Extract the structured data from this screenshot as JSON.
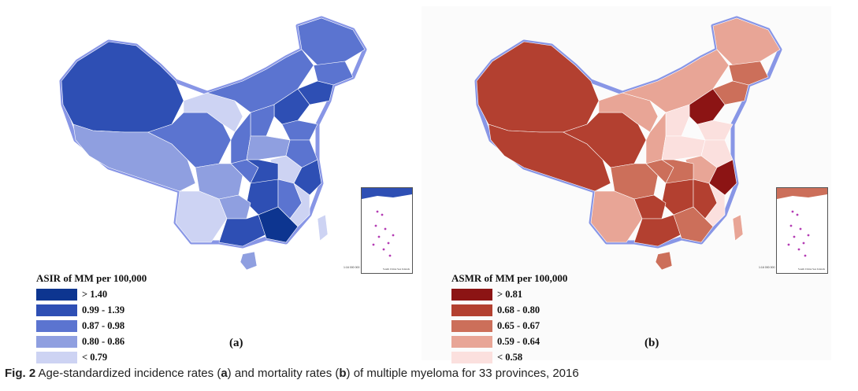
{
  "panels": [
    {
      "id": "a",
      "label": "(a)",
      "legend_title": "ASIR of MM per 100,000",
      "legend": [
        {
          "label": "> 1.40",
          "color": "#0d3590"
        },
        {
          "label": "0.99 - 1.39",
          "color": "#2e4fb4"
        },
        {
          "label": "0.87 - 0.98",
          "color": "#5b74d0"
        },
        {
          "label": "0.80 - 0.86",
          "color": "#8f9fe0"
        },
        {
          "label": "< 0.79",
          "color": "#cdd3f3"
        }
      ],
      "outline_color": "#8896e6",
      "inset_caption": "South China Sea Islands",
      "scale": "1:16 000 000"
    },
    {
      "id": "b",
      "label": "(b)",
      "legend_title": "ASMR of MM per 100,000",
      "legend": [
        {
          "label": "> 0.81",
          "color": "#8c1414"
        },
        {
          "label": "0.68 - 0.80",
          "color": "#b34030"
        },
        {
          "label": "0.65 - 0.67",
          "color": "#cc6f5a"
        },
        {
          "label": "0.59 - 0.64",
          "color": "#e8a596"
        },
        {
          "label": "< 0.58",
          "color": "#fbe0de"
        }
      ],
      "outline_color": "#8896e6",
      "inset_caption": "South China Sea Islands",
      "scale": "1:16 000 000"
    }
  ],
  "caption": {
    "fig": "Fig. 2",
    "text_before_a": " Age-standardized incidence rates (",
    "a": "a",
    "text_between": ") and mortality rates (",
    "b": "b",
    "text_after": ") of multiple myeloma for 33 provinces, 2016"
  }
}
